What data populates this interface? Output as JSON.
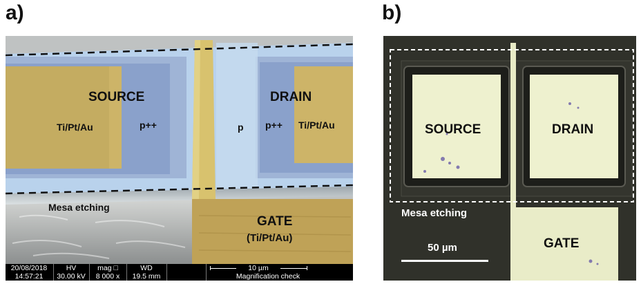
{
  "panel_a": {
    "label": "a)",
    "regions": {
      "source": "SOURCE",
      "drain": "DRAIN",
      "gate": "GATE",
      "gate_metal": "(Ti/Pt/Au)",
      "source_metal": "Ti/Pt/Au",
      "drain_metal": "Ti/Pt/Au",
      "source_doping": "p++",
      "drain_doping": "p++",
      "channel_doping": "p",
      "mesa": "Mesa etching"
    },
    "sem_info": {
      "date": "20/08/2018",
      "time": "14:57:21",
      "hv_label": "HV",
      "hv_value": "30.00 kV",
      "mag_label": "mag □",
      "mag_value": "8 000 x",
      "wd_label": "WD",
      "wd_value": "19.5 mm",
      "scale_label": "10 µm",
      "footer": "Magnification check"
    },
    "colors": {
      "metal_overlay": "#c9b060",
      "p_region_overlay": "#a9c6e6",
      "p_plus_overlay": "#7f98c4",
      "substrate": "#b9bcbc"
    }
  },
  "panel_b": {
    "label": "b)",
    "regions": {
      "source": "SOURCE",
      "drain": "DRAIN",
      "gate": "GATE",
      "mesa": "Mesa etching"
    },
    "scale_label": "50 µm",
    "colors": {
      "background": "#2f3028",
      "pad": "#eef1cf"
    }
  }
}
